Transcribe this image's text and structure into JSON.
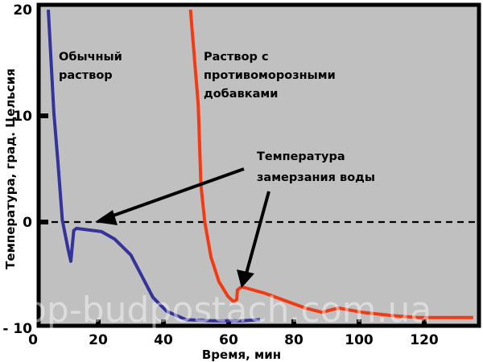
{
  "chart_data": {
    "type": "line",
    "xlabel": "Время, мин",
    "ylabel": "Температура, град. Цельсия",
    "xlim": [
      0,
      136
    ],
    "ylim": [
      -10,
      20
    ],
    "xticks": [
      "0",
      "20",
      "40",
      "60",
      "80",
      "100",
      "120"
    ],
    "yticks": [
      "20",
      "10",
      "0",
      "- 10"
    ],
    "grid": false,
    "background": "#c0c0c0",
    "reference_line": {
      "y": 0,
      "style": "dashed",
      "color": "#000000"
    },
    "series": [
      {
        "name": "Обычный раствор",
        "color": "#33339a",
        "x": [
          4.7,
          6.4,
          7.6,
          9,
          10.8,
          11.6,
          12.5,
          13.3,
          21,
          25,
          30,
          33.4,
          36.8,
          41,
          47,
          55,
          64,
          69.6
        ],
        "y": [
          20,
          10.3,
          5.8,
          0.2,
          -2.6,
          -3.7,
          -0.8,
          -0.6,
          -0.9,
          -1.6,
          -3.1,
          -5.1,
          -7.1,
          -8.4,
          -9.2,
          -9.3,
          -9.3,
          -9.2
        ]
      },
      {
        "name": "Раствор с противоморозными добавками",
        "color": "#f23a14",
        "x": [
          48.3,
          50.7,
          51.5,
          52.7,
          54.6,
          57,
          59.8,
          61.5,
          62.5,
          62.7,
          64,
          71,
          83.5,
          88.6,
          93.6,
          101,
          110,
          118,
          135
        ],
        "y": [
          20,
          11,
          3.5,
          0,
          -3.3,
          -5.6,
          -7,
          -7.5,
          -7.3,
          -6.4,
          -6.1,
          -6.7,
          -8.1,
          -8.5,
          -8.1,
          -8.5,
          -8.8,
          -9,
          -9
        ]
      }
    ],
    "annotations": {
      "series1_label": [
        "Обычный",
        "раствор"
      ],
      "series2_label": [
        "Раствор с",
        "противоморозными",
        "добавками"
      ],
      "freezing_label": [
        "Температура",
        "замерзания воды"
      ]
    },
    "watermark": "pp-budpostach.com.ua"
  }
}
